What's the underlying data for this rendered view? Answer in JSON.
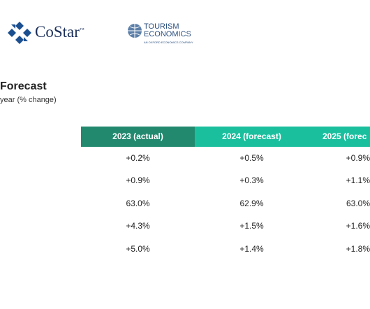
{
  "header": {
    "costar": "CoStar",
    "costar_mark": "™",
    "tourism_line1": "TOURISM",
    "tourism_line2": "ECONOMICS",
    "tourism_tagline": "AN OXFORD ECONOMICS COMPANY"
  },
  "title": "Forecast",
  "subtitle": "year (% change)",
  "table": {
    "columns": [
      "2023 (actual)",
      "2024 (forecast)",
      "2025 (forec"
    ],
    "rows": [
      [
        "+0.2%",
        "+0.5%",
        "+0.9%"
      ],
      [
        "+0.9%",
        "+0.3%",
        "+1.1%"
      ],
      [
        "63.0%",
        "62.9%",
        "63.0%"
      ],
      [
        "+4.3%",
        "+1.5%",
        "+1.6%"
      ],
      [
        "+5.0%",
        "+1.4%",
        "+1.8%"
      ]
    ]
  }
}
